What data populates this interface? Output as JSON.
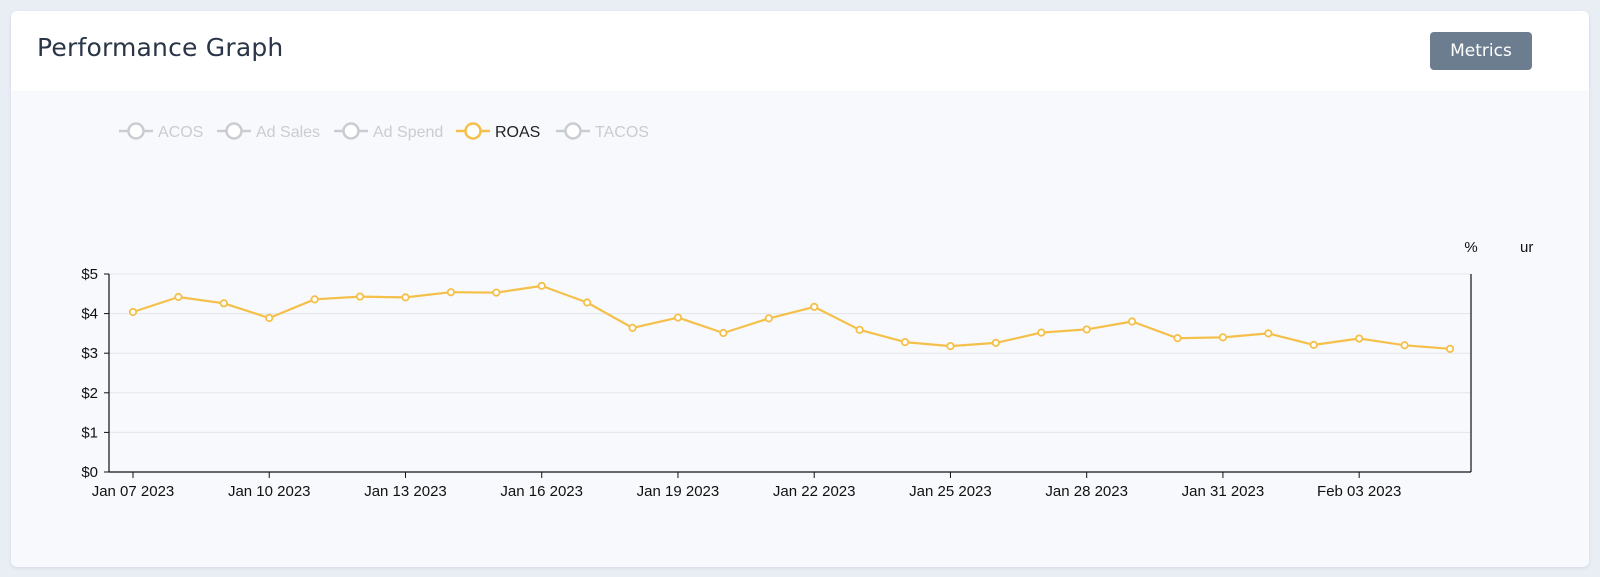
{
  "header": {
    "title": "Performance Graph",
    "metrics_button": "Metrics"
  },
  "colors": {
    "roas": "#f5c04a",
    "inactive_legend": "#c9ccd1",
    "active_legend_text": "#222222",
    "inactive_legend_text": "#c9ccd1",
    "grid": "#e2e5ea",
    "button_bg": "#6d7d90"
  },
  "chart_data": {
    "type": "line",
    "legend": [
      {
        "name": "ACOS",
        "active": false
      },
      {
        "name": "Ad Sales",
        "active": false
      },
      {
        "name": "Ad Spend",
        "active": false
      },
      {
        "name": "ROAS",
        "active": true
      },
      {
        "name": "TACOS",
        "active": false
      }
    ],
    "right_axis_labels": [
      "%",
      "ur"
    ],
    "x_tick_labels": [
      "Jan 07 2023",
      "Jan 10 2023",
      "Jan 13 2023",
      "Jan 16 2023",
      "Jan 19 2023",
      "Jan 22 2023",
      "Jan 25 2023",
      "Jan 28 2023",
      "Jan 31 2023",
      "Feb 03 2023"
    ],
    "x_range": [
      "Jan 07 2023",
      "Feb 05 2023"
    ],
    "y_tick_labels": [
      "$0",
      "$1",
      "$2",
      "$3",
      "$4",
      "$5"
    ],
    "ylim": [
      0,
      5
    ],
    "grid": true,
    "series": [
      {
        "name": "ROAS",
        "x": [
          "Jan 07 2023",
          "Jan 08 2023",
          "Jan 09 2023",
          "Jan 10 2023",
          "Jan 11 2023",
          "Jan 12 2023",
          "Jan 13 2023",
          "Jan 14 2023",
          "Jan 15 2023",
          "Jan 16 2023",
          "Jan 17 2023",
          "Jan 18 2023",
          "Jan 19 2023",
          "Jan 20 2023",
          "Jan 21 2023",
          "Jan 22 2023",
          "Jan 23 2023",
          "Jan 24 2023",
          "Jan 25 2023",
          "Jan 26 2023",
          "Jan 27 2023",
          "Jan 28 2023",
          "Jan 29 2023",
          "Jan 30 2023",
          "Jan 31 2023",
          "Feb 01 2023",
          "Feb 02 2023",
          "Feb 03 2023",
          "Feb 04 2023",
          "Feb 05 2023"
        ],
        "values": [
          4.04,
          4.42,
          4.26,
          3.89,
          4.36,
          4.43,
          4.41,
          4.54,
          4.53,
          4.7,
          4.28,
          3.64,
          3.9,
          3.51,
          3.88,
          4.17,
          3.59,
          3.28,
          3.18,
          3.26,
          3.52,
          3.6,
          3.8,
          3.38,
          3.4,
          3.5,
          3.21,
          3.37,
          3.2,
          3.11
        ]
      }
    ]
  }
}
